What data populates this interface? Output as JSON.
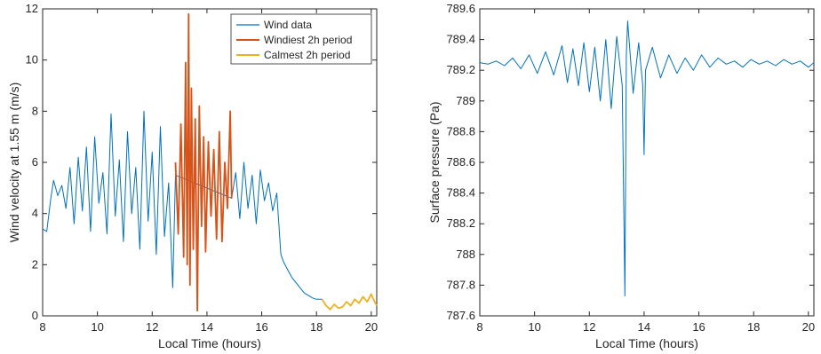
{
  "chart_data": [
    {
      "type": "line",
      "xlabel": "Local Time (hours)",
      "ylabel": "Wind velocity at 1.55 m (m/s)",
      "xlim": [
        8,
        20.2
      ],
      "ylim": [
        0,
        12
      ],
      "xticks": [
        8,
        10,
        12,
        14,
        16,
        18,
        20
      ],
      "xtick_labels": [
        "8",
        "10",
        "12",
        "14",
        "16",
        "18",
        "20"
      ],
      "yticks": [
        0,
        2,
        4,
        6,
        8,
        10,
        12
      ],
      "ytick_labels": [
        "0",
        "2",
        "4",
        "6",
        "8",
        "10",
        "12"
      ],
      "grid": false,
      "legend_position": "top-right",
      "series": [
        {
          "name": "Wind data",
          "color": "#0072BD",
          "x": [
            8.0,
            8.15,
            8.3,
            8.4,
            8.55,
            8.7,
            8.85,
            9.0,
            9.15,
            9.3,
            9.45,
            9.6,
            9.75,
            9.9,
            10.05,
            10.2,
            10.35,
            10.5,
            10.65,
            10.8,
            10.95,
            11.1,
            11.25,
            11.4,
            11.55,
            11.7,
            11.85,
            12.0,
            12.15,
            12.3,
            12.45,
            12.6,
            12.75,
            12.85,
            14.9,
            15.05,
            15.2,
            15.35,
            15.5,
            15.65,
            15.8,
            15.95,
            16.1,
            16.25,
            16.4,
            16.55,
            16.7,
            16.8,
            16.95,
            17.1,
            17.25,
            17.4,
            17.55,
            17.7,
            17.85,
            18.0,
            18.2
          ],
          "values": [
            3.4,
            3.3,
            4.6,
            5.3,
            4.7,
            5.1,
            4.2,
            5.8,
            3.6,
            6.2,
            4.1,
            6.6,
            3.3,
            7.0,
            4.4,
            5.6,
            3.2,
            7.9,
            3.9,
            6.1,
            2.9,
            7.2,
            4.0,
            5.8,
            2.6,
            8.0,
            3.7,
            6.4,
            2.4,
            7.4,
            3.1,
            5.2,
            1.1,
            5.5,
            4.6,
            5.6,
            3.8,
            6.0,
            4.2,
            5.5,
            3.6,
            5.7,
            4.5,
            5.2,
            4.1,
            4.8,
            2.4,
            2.1,
            1.8,
            1.5,
            1.3,
            1.1,
            0.9,
            0.8,
            0.7,
            0.65,
            0.65
          ]
        },
        {
          "name": "Windiest 2h period",
          "color": "#D95319",
          "x": [
            12.85,
            12.95,
            13.05,
            13.15,
            13.22,
            13.28,
            13.33,
            13.38,
            13.43,
            13.5,
            13.57,
            13.65,
            13.72,
            13.8,
            13.88,
            13.95,
            14.05,
            14.15,
            14.25,
            14.35,
            14.45,
            14.55,
            14.65,
            14.75,
            14.85,
            14.9
          ],
          "values": [
            6.0,
            3.2,
            7.5,
            2.3,
            9.9,
            2.0,
            11.8,
            1.2,
            8.9,
            2.6,
            7.7,
            0.2,
            8.2,
            3.5,
            7.0,
            2.5,
            6.8,
            3.9,
            6.5,
            3.0,
            7.2,
            2.9,
            6.0,
            4.2,
            8.0,
            4.6
          ]
        },
        {
          "name": "Calmest 2h period",
          "color": "#EDB120",
          "x": [
            18.2,
            18.35,
            18.5,
            18.65,
            18.8,
            18.95,
            19.1,
            19.25,
            19.4,
            19.55,
            19.7,
            19.85,
            20.0,
            20.1,
            20.2
          ],
          "values": [
            0.65,
            0.4,
            0.25,
            0.45,
            0.3,
            0.35,
            0.55,
            0.4,
            0.65,
            0.5,
            0.75,
            0.55,
            0.85,
            0.6,
            0.4
          ]
        }
      ]
    },
    {
      "type": "line",
      "xlabel": "Local Time (hours)",
      "ylabel": "Surface pressure (Pa)",
      "xlim": [
        8,
        20.2
      ],
      "ylim": [
        787.6,
        789.6
      ],
      "xticks": [
        8,
        10,
        12,
        14,
        16,
        18,
        20
      ],
      "xtick_labels": [
        "8",
        "10",
        "12",
        "14",
        "16",
        "18",
        "20"
      ],
      "yticks": [
        787.6,
        787.8,
        788,
        788.2,
        788.4,
        788.6,
        788.8,
        789,
        789.2,
        789.4,
        789.6
      ],
      "ytick_labels": [
        "787.6",
        "787.8",
        "788",
        "788.2",
        "788.4",
        "788.6",
        "788.8",
        "789",
        "789.2",
        "789.4",
        "789.6"
      ],
      "grid": false,
      "series": [
        {
          "color": "#0072BD",
          "x": [
            8.0,
            8.3,
            8.6,
            8.9,
            9.2,
            9.5,
            9.8,
            10.1,
            10.4,
            10.7,
            11.0,
            11.2,
            11.4,
            11.6,
            11.8,
            12.0,
            12.2,
            12.4,
            12.6,
            12.8,
            13.0,
            13.2,
            13.3,
            13.35,
            13.4,
            13.6,
            13.8,
            13.95,
            14.0,
            14.05,
            14.3,
            14.6,
            14.9,
            15.2,
            15.5,
            15.8,
            16.1,
            16.4,
            16.7,
            17.0,
            17.3,
            17.6,
            17.9,
            18.2,
            18.5,
            18.8,
            19.1,
            19.4,
            19.7,
            20.0,
            20.2
          ],
          "values": [
            789.25,
            789.24,
            789.26,
            789.23,
            789.28,
            789.21,
            789.3,
            789.18,
            789.32,
            789.17,
            789.36,
            789.12,
            789.34,
            789.1,
            789.38,
            789.06,
            789.35,
            789.0,
            789.4,
            788.95,
            789.42,
            789.1,
            787.73,
            789.3,
            789.52,
            789.05,
            789.38,
            789.1,
            788.65,
            789.2,
            789.35,
            789.15,
            789.3,
            789.18,
            789.28,
            789.2,
            789.3,
            789.22,
            789.28,
            789.24,
            789.26,
            789.22,
            789.27,
            789.24,
            789.26,
            789.23,
            789.27,
            789.24,
            789.26,
            789.22,
            789.25
          ]
        }
      ]
    }
  ]
}
